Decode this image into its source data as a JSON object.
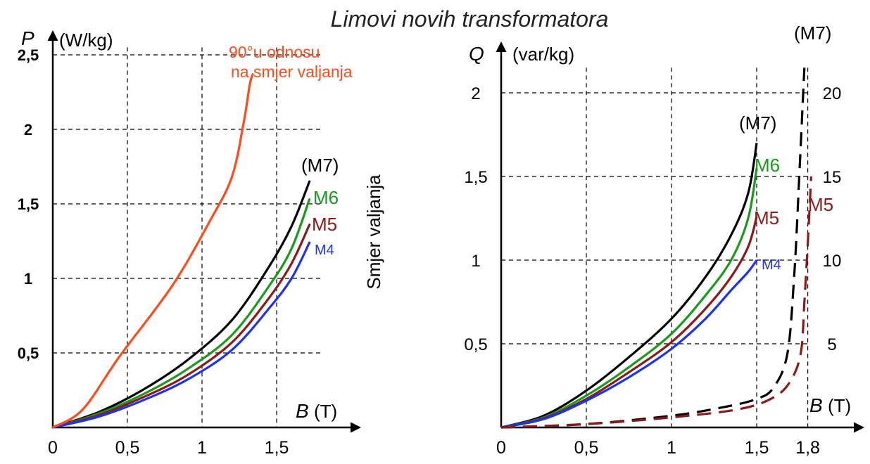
{
  "title": "Limovi novih transformatora",
  "colors": {
    "M7": "#000000",
    "M6": "#1a9a1a",
    "M5": "#8b1a1a",
    "M4": "#1a33ee",
    "cross": "#ff4a1c"
  },
  "side_label": "Smjer valjanja",
  "chart_data": [
    {
      "type": "line",
      "yvar": "P",
      "yunit": "(W/kg)",
      "xvar": "B",
      "xunit": "(T)",
      "xlim": [
        0,
        2.08
      ],
      "ylim": [
        0,
        2.62
      ],
      "x_ticks": [
        "0",
        "0,5",
        "1",
        "1,5"
      ],
      "y_ticks": [
        "0,5",
        "1",
        "1,5",
        "2",
        "2,5"
      ],
      "grid": true,
      "series": [
        {
          "name": "(M7)",
          "key": "M7",
          "points": [
            [
              0,
              0
            ],
            [
              0.3,
              0.1
            ],
            [
              0.6,
              0.25
            ],
            [
              0.9,
              0.45
            ],
            [
              1.2,
              0.72
            ],
            [
              1.45,
              1.08
            ],
            [
              1.6,
              1.35
            ],
            [
              1.72,
              1.65
            ]
          ]
        },
        {
          "name": "M6",
          "key": "M6",
          "points": [
            [
              0,
              0
            ],
            [
              0.3,
              0.09
            ],
            [
              0.6,
              0.22
            ],
            [
              0.9,
              0.39
            ],
            [
              1.2,
              0.62
            ],
            [
              1.45,
              0.95
            ],
            [
              1.6,
              1.2
            ],
            [
              1.72,
              1.53
            ]
          ]
        },
        {
          "name": "M5",
          "key": "M5",
          "points": [
            [
              0,
              0
            ],
            [
              0.3,
              0.08
            ],
            [
              0.6,
              0.2
            ],
            [
              0.9,
              0.35
            ],
            [
              1.2,
              0.57
            ],
            [
              1.45,
              0.87
            ],
            [
              1.6,
              1.1
            ],
            [
              1.72,
              1.36
            ]
          ]
        },
        {
          "name": "M4",
          "key": "M4",
          "points": [
            [
              0,
              0
            ],
            [
              0.3,
              0.07
            ],
            [
              0.6,
              0.18
            ],
            [
              0.9,
              0.32
            ],
            [
              1.2,
              0.52
            ],
            [
              1.45,
              0.8
            ],
            [
              1.6,
              1.0
            ],
            [
              1.72,
              1.24
            ]
          ]
        },
        {
          "name": "90°u odnosu na smjer valjanja",
          "key": "cross",
          "label_lines": [
            "90°u odnosu",
            "na smjer valjanja"
          ],
          "points": [
            [
              0,
              0
            ],
            [
              0.2,
              0.12
            ],
            [
              0.45,
              0.48
            ],
            [
              0.8,
              0.95
            ],
            [
              1.05,
              1.38
            ],
            [
              1.2,
              1.68
            ],
            [
              1.28,
              2.05
            ],
            [
              1.32,
              2.3
            ],
            [
              1.34,
              2.37
            ]
          ]
        }
      ]
    },
    {
      "type": "line",
      "yvar": "Q",
      "yunit": "(var/kg)",
      "xvar": "B",
      "xunit": "(T)",
      "xlim": [
        0,
        2.01
      ],
      "ylim": [
        0,
        2.15
      ],
      "x_ticks": [
        "0",
        "0,5",
        "1",
        "1,5",
        "1,8"
      ],
      "y_ticks_left": [
        "0,5",
        "1",
        "1,5",
        "2"
      ],
      "y_ticks_right": [
        "5",
        "10",
        "15",
        "20"
      ],
      "secondary_axis_label": "(M7)",
      "grid": true,
      "series": [
        {
          "name": "(M7)",
          "key": "M7",
          "style": "solid",
          "points": [
            [
              0,
              0
            ],
            [
              0.25,
              0.07
            ],
            [
              0.5,
              0.22
            ],
            [
              0.75,
              0.42
            ],
            [
              1.0,
              0.65
            ],
            [
              1.2,
              0.9
            ],
            [
              1.35,
              1.15
            ],
            [
              1.45,
              1.4
            ],
            [
              1.5,
              1.7
            ]
          ]
        },
        {
          "name": "M6",
          "key": "M6",
          "style": "solid",
          "points": [
            [
              0,
              0
            ],
            [
              0.25,
              0.06
            ],
            [
              0.5,
              0.19
            ],
            [
              0.75,
              0.36
            ],
            [
              1.0,
              0.56
            ],
            [
              1.2,
              0.79
            ],
            [
              1.35,
              1.0
            ],
            [
              1.45,
              1.25
            ],
            [
              1.5,
              1.55
            ]
          ]
        },
        {
          "name": "M5",
          "key": "M5",
          "style": "solid",
          "points": [
            [
              0,
              0
            ],
            [
              0.25,
              0.055
            ],
            [
              0.5,
              0.17
            ],
            [
              0.75,
              0.33
            ],
            [
              1.0,
              0.51
            ],
            [
              1.2,
              0.71
            ],
            [
              1.35,
              0.9
            ],
            [
              1.45,
              1.08
            ],
            [
              1.5,
              1.26
            ]
          ]
        },
        {
          "name": "M4",
          "key": "M4",
          "style": "solid",
          "points": [
            [
              0,
              0
            ],
            [
              0.25,
              0.05
            ],
            [
              0.5,
              0.16
            ],
            [
              0.75,
              0.3
            ],
            [
              1.0,
              0.47
            ],
            [
              1.2,
              0.65
            ],
            [
              1.35,
              0.82
            ],
            [
              1.45,
              0.93
            ],
            [
              1.5,
              1.0
            ]
          ]
        },
        {
          "name": "(M7)",
          "key": "M7",
          "style": "dashed",
          "points": [
            [
              0,
              0
            ],
            [
              0.5,
              0.02
            ],
            [
              1.0,
              0.07
            ],
            [
              1.3,
              0.12
            ],
            [
              1.5,
              0.17
            ],
            [
              1.6,
              0.24
            ],
            [
              1.68,
              0.44
            ],
            [
              1.72,
              0.9
            ],
            [
              1.75,
              1.5
            ],
            [
              1.78,
              2.15
            ]
          ]
        },
        {
          "name": "M5",
          "key": "M5",
          "style": "dashed",
          "points": [
            [
              0,
              0
            ],
            [
              0.5,
              0.02
            ],
            [
              1.0,
              0.06
            ],
            [
              1.4,
              0.11
            ],
            [
              1.6,
              0.18
            ],
            [
              1.7,
              0.28
            ],
            [
              1.76,
              0.45
            ],
            [
              1.78,
              0.75
            ],
            [
              1.8,
              1.1
            ],
            [
              1.82,
              1.5
            ]
          ]
        }
      ]
    }
  ]
}
